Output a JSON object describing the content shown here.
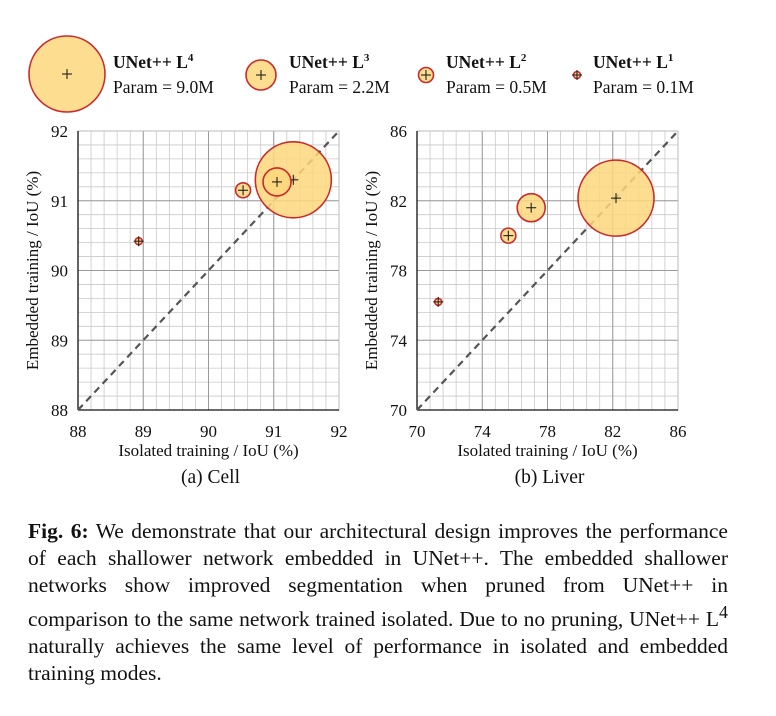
{
  "legend": [
    {
      "name": "UNet++ L",
      "sup": "4",
      "param": "Param = 9.0M"
    },
    {
      "name": "UNet++ L",
      "sup": "3",
      "param": "Param = 2.2M"
    },
    {
      "name": "UNet++ L",
      "sup": "2",
      "param": "Param = 0.5M"
    },
    {
      "name": "UNet++ L",
      "sup": "1",
      "param": "Param = 0.1M"
    }
  ],
  "chart_data": [
    {
      "type": "scatter",
      "subtitle": "(a) Cell",
      "xlabel": "Isolated training / IoU (%)",
      "ylabel": "Embedded training / IoU (%)",
      "xlim": [
        88,
        92
      ],
      "ylim": [
        88,
        92
      ],
      "xticks": [
        "88",
        "89",
        "90",
        "91",
        "92"
      ],
      "yticks": [
        "88",
        "89",
        "90",
        "91",
        "92"
      ],
      "grid": true,
      "diagonal": true,
      "points": [
        {
          "series": "UNet++ L4",
          "x": 91.3,
          "y": 91.3
        },
        {
          "series": "UNet++ L3",
          "x": 91.05,
          "y": 91.27
        },
        {
          "series": "UNet++ L2",
          "x": 90.53,
          "y": 91.15
        },
        {
          "series": "UNet++ L1",
          "x": 88.93,
          "y": 90.42
        }
      ]
    },
    {
      "type": "scatter",
      "subtitle": "(b) Liver",
      "xlabel": "Isolated training / IoU (%)",
      "ylabel": "Embedded training / IoU (%)",
      "xlim": [
        70,
        86
      ],
      "ylim": [
        70,
        86
      ],
      "xticks": [
        "70",
        "74",
        "78",
        "82",
        "86"
      ],
      "yticks": [
        "70",
        "74",
        "78",
        "82",
        "86"
      ],
      "grid": true,
      "diagonal": true,
      "points": [
        {
          "series": "UNet++ L4",
          "x": 82.2,
          "y": 82.15
        },
        {
          "series": "UNet++ L3",
          "x": 77.0,
          "y": 81.6
        },
        {
          "series": "UNet++ L2",
          "x": 75.6,
          "y": 80.0
        },
        {
          "series": "UNet++ L1",
          "x": 71.3,
          "y": 76.2
        }
      ]
    }
  ],
  "caption": {
    "label": "Fig. 6:",
    "text_before": " We demonstrate that our architectural design improves the performance of each shallower network embedded in UNet++. The embedded shallower networks show improved segmentation when pruned from UNet++ in comparison to the same network trained isolated. Due to no pruning, UNet++ L",
    "sup": "4",
    "text_after": " naturally achieves the same level of performance in isolated and embedded training modes."
  },
  "colors": {
    "bubble_fill": "#fdd77c",
    "bubble_stroke": "#cc2a2a",
    "grid": "#c9c9c9",
    "axis": "#111111",
    "diagonal": "#555555"
  }
}
